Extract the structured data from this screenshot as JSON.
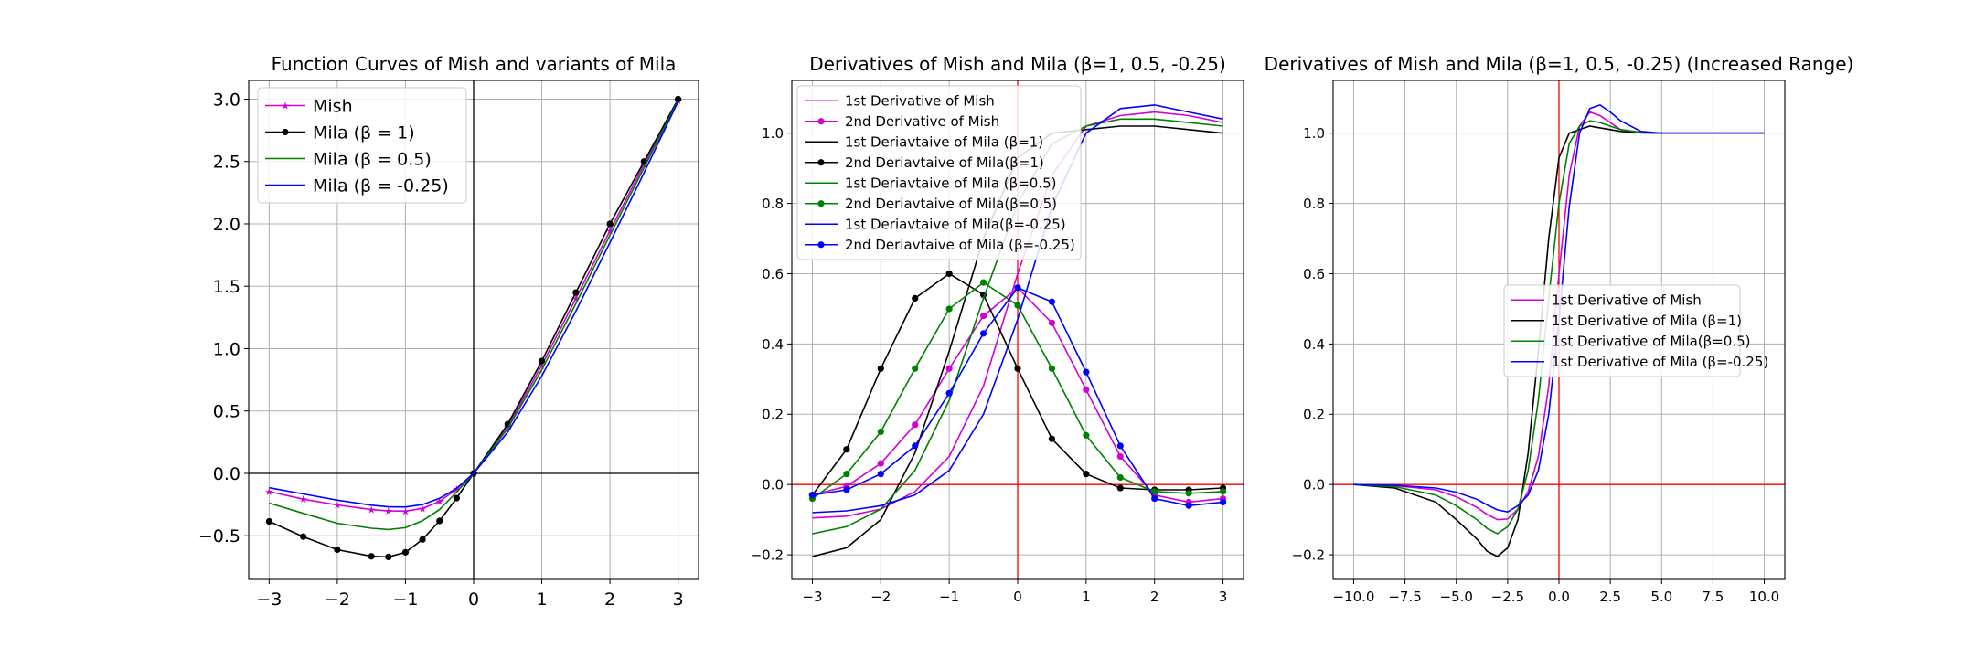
{
  "chart_data": [
    {
      "type": "line",
      "title": "Function Curves of Mish and variants of Mila",
      "xlabel": "",
      "ylabel": "",
      "xlim": [
        -3.3,
        3.3
      ],
      "ylim": [
        -0.85,
        3.15
      ],
      "xticks": [
        -3,
        -2,
        -1,
        0,
        1,
        2,
        3
      ],
      "yticks": [
        -0.5,
        0.0,
        0.5,
        1.0,
        1.5,
        2.0,
        2.5,
        3.0
      ],
      "xtick_labels": [
        "−3",
        "−2",
        "−1",
        "0",
        "1",
        "2",
        "3"
      ],
      "ytick_labels": [
        "−0.5",
        "0.0",
        "0.5",
        "1.0",
        "1.5",
        "2.0",
        "2.5",
        "3.0"
      ],
      "grid": true,
      "legend_position": "top-left",
      "ref_lines": {
        "color": "#000000",
        "x": 0,
        "y": 0
      },
      "x": [
        -3.0,
        -2.5,
        -2.0,
        -1.5,
        -1.25,
        -1.0,
        -0.75,
        -0.5,
        -0.25,
        0.0,
        0.5,
        1.0,
        1.5,
        2.0,
        2.5,
        3.0
      ],
      "series": [
        {
          "name": "Mish",
          "color": "#d400d4",
          "marker": "star",
          "values": [
            -0.146,
            -0.207,
            -0.253,
            -0.29,
            -0.301,
            -0.303,
            -0.281,
            -0.225,
            -0.126,
            0.0,
            0.375,
            0.865,
            1.402,
            1.944,
            2.477,
            2.987
          ]
        },
        {
          "name": "Mila (β = 1)",
          "color": "#000000",
          "marker": "circle",
          "values": [
            -0.385,
            -0.507,
            -0.612,
            -0.665,
            -0.67,
            -0.633,
            -0.53,
            -0.381,
            -0.199,
            0.0,
            0.395,
            0.9,
            1.45,
            2.0,
            2.5,
            3.0
          ]
        },
        {
          "name": "Mila (β = 0.5)",
          "color": "#008000",
          "marker": "none",
          "values": [
            -0.238,
            -0.32,
            -0.4,
            -0.44,
            -0.45,
            -0.435,
            -0.38,
            -0.29,
            -0.15,
            0.0,
            0.36,
            0.83,
            1.36,
            1.91,
            2.45,
            2.99
          ]
        },
        {
          "name": "Mila (β = -0.25)",
          "color": "#0000ff",
          "marker": "none",
          "values": [
            -0.115,
            -0.165,
            -0.215,
            -0.255,
            -0.268,
            -0.27,
            -0.25,
            -0.2,
            -0.12,
            0.0,
            0.33,
            0.78,
            1.3,
            1.85,
            2.41,
            2.98
          ]
        }
      ]
    },
    {
      "type": "line",
      "title": "Derivatives of Mish and Mila (β=1, 0.5, -0.25)",
      "xlabel": "",
      "ylabel": "",
      "xlim": [
        -3.3,
        3.3
      ],
      "ylim": [
        -0.27,
        1.15
      ],
      "xticks": [
        -3,
        -2,
        -1,
        0,
        1,
        2,
        3
      ],
      "yticks": [
        -0.2,
        0.0,
        0.2,
        0.4,
        0.6,
        0.8,
        1.0
      ],
      "xtick_labels": [
        "−3",
        "−2",
        "−1",
        "0",
        "1",
        "2",
        "3"
      ],
      "ytick_labels": [
        "−0.2",
        "0.0",
        "0.2",
        "0.4",
        "0.6",
        "0.8",
        "1.0"
      ],
      "grid": true,
      "legend_position": "top-left",
      "ref_lines": {
        "color": "#ff0000",
        "x": 0,
        "y": 0
      },
      "x": [
        -3.0,
        -2.5,
        -2.0,
        -1.5,
        -1.0,
        -0.5,
        0.0,
        0.5,
        1.0,
        1.5,
        2.0,
        2.5,
        3.0
      ],
      "series": [
        {
          "name": "1st Derivative of Mish",
          "color": "#d400d4",
          "marker": "none",
          "values": [
            -0.095,
            -0.09,
            -0.07,
            -0.02,
            0.08,
            0.28,
            0.6,
            0.88,
            1.02,
            1.05,
            1.06,
            1.05,
            1.03
          ]
        },
        {
          "name": "2nd Derivative of Mish",
          "color": "#d400d4",
          "marker": "circle",
          "values": [
            -0.03,
            -0.005,
            0.06,
            0.17,
            0.33,
            0.48,
            0.56,
            0.46,
            0.27,
            0.08,
            -0.03,
            -0.05,
            -0.04
          ]
        },
        {
          "name": "1st Deriavtaive of Mila (β=1)",
          "color": "#000000",
          "marker": "none",
          "values": [
            -0.205,
            -0.18,
            -0.1,
            0.09,
            0.38,
            0.7,
            0.93,
            1.0,
            1.01,
            1.02,
            1.02,
            1.01,
            1.0
          ]
        },
        {
          "name": "2nd Deriavtaive of Mila(β=1)",
          "color": "#000000",
          "marker": "circle",
          "values": [
            -0.03,
            0.1,
            0.33,
            0.53,
            0.6,
            0.54,
            0.33,
            0.13,
            0.03,
            -0.01,
            -0.015,
            -0.015,
            -0.01
          ]
        },
        {
          "name": "1st Deriavtaive of Mila (β=0.5)",
          "color": "#008000",
          "marker": "none",
          "values": [
            -0.14,
            -0.12,
            -0.07,
            0.04,
            0.24,
            0.53,
            0.8,
            0.97,
            1.02,
            1.04,
            1.04,
            1.03,
            1.02
          ]
        },
        {
          "name": "2nd Deriavtaive of Mila(β=0.5)",
          "color": "#008000",
          "marker": "circle",
          "values": [
            -0.04,
            0.03,
            0.15,
            0.33,
            0.5,
            0.575,
            0.51,
            0.33,
            0.14,
            0.02,
            -0.02,
            -0.025,
            -0.02
          ]
        },
        {
          "name": "1st Deriavtaive of Mila(β=-0.25)",
          "color": "#0000ff",
          "marker": "none",
          "values": [
            -0.08,
            -0.075,
            -0.06,
            -0.03,
            0.04,
            0.2,
            0.47,
            0.79,
            1.0,
            1.07,
            1.08,
            1.06,
            1.04
          ]
        },
        {
          "name": "2nd Deriavtaive of Mila (β=-0.25)",
          "color": "#0000ff",
          "marker": "circle",
          "values": [
            -0.03,
            -0.015,
            0.03,
            0.11,
            0.26,
            0.43,
            0.56,
            0.52,
            0.32,
            0.11,
            -0.04,
            -0.06,
            -0.05
          ]
        }
      ]
    },
    {
      "type": "line",
      "title": "Derivatives of Mish and Mila (β=1, 0.5, -0.25) (Increased Range)",
      "xlabel": "",
      "ylabel": "",
      "xlim": [
        -11.0,
        11.0
      ],
      "ylim": [
        -0.27,
        1.15
      ],
      "xticks": [
        -10.0,
        -7.5,
        -5.0,
        -2.5,
        0.0,
        2.5,
        5.0,
        7.5,
        10.0
      ],
      "yticks": [
        -0.2,
        0.0,
        0.2,
        0.4,
        0.6,
        0.8,
        1.0
      ],
      "xtick_labels": [
        "−10.0",
        "−7.5",
        "−5.0",
        "−2.5",
        "0.0",
        "2.5",
        "5.0",
        "7.5",
        "10.0"
      ],
      "ytick_labels": [
        "−0.2",
        "0.0",
        "0.2",
        "0.4",
        "0.6",
        "0.8",
        "1.0"
      ],
      "grid": true,
      "legend_position": "center-right",
      "ref_lines": {
        "color": "#ff0000",
        "x": 0,
        "y": 0
      },
      "x": [
        -10.0,
        -8.0,
        -6.0,
        -5.0,
        -4.0,
        -3.5,
        -3.0,
        -2.5,
        -2.0,
        -1.5,
        -1.0,
        -0.5,
        0.0,
        0.5,
        1.0,
        1.5,
        2.0,
        2.5,
        3.0,
        4.0,
        5.0,
        7.5,
        10.0
      ],
      "series": [
        {
          "name": "1st Derivative of Mish",
          "color": "#d400d4",
          "marker": "none",
          "values": [
            0.0,
            -0.003,
            -0.015,
            -0.035,
            -0.065,
            -0.085,
            -0.1,
            -0.098,
            -0.07,
            -0.02,
            0.08,
            0.28,
            0.6,
            0.88,
            1.02,
            1.06,
            1.05,
            1.03,
            1.01,
            1.002,
            1.0,
            1.0,
            1.0
          ]
        },
        {
          "name": "1st Derivative of  Mila (β=1)",
          "color": "#000000",
          "marker": "none",
          "values": [
            0.0,
            -0.01,
            -0.05,
            -0.1,
            -0.155,
            -0.19,
            -0.205,
            -0.18,
            -0.1,
            0.09,
            0.38,
            0.7,
            0.93,
            1.0,
            1.01,
            1.02,
            1.015,
            1.01,
            1.005,
            1.001,
            1.0,
            1.0,
            1.0
          ]
        },
        {
          "name": "1st Derivative of  Mila(β=0.5)",
          "color": "#008000",
          "marker": "none",
          "values": [
            0.0,
            -0.006,
            -0.03,
            -0.06,
            -0.1,
            -0.125,
            -0.14,
            -0.12,
            -0.07,
            0.04,
            0.24,
            0.53,
            0.8,
            0.97,
            1.02,
            1.035,
            1.03,
            1.02,
            1.01,
            1.002,
            1.0,
            1.0,
            1.0
          ]
        },
        {
          "name": "1st Derivative of Mila  (β=-0.25)",
          "color": "#0000ff",
          "marker": "none",
          "values": [
            0.0,
            -0.002,
            -0.01,
            -0.022,
            -0.042,
            -0.058,
            -0.072,
            -0.078,
            -0.06,
            -0.03,
            0.04,
            0.2,
            0.47,
            0.79,
            1.0,
            1.07,
            1.08,
            1.06,
            1.035,
            1.005,
            1.0,
            1.0,
            1.0
          ]
        }
      ]
    }
  ]
}
